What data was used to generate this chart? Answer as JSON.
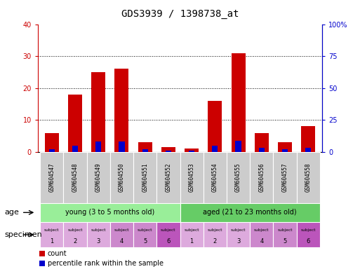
{
  "title": "GDS3939 / 1398738_at",
  "categories": [
    "GSM604547",
    "GSM604548",
    "GSM604549",
    "GSM604550",
    "GSM604551",
    "GSM604552",
    "GSM604553",
    "GSM604554",
    "GSM604555",
    "GSM604556",
    "GSM604557",
    "GSM604558"
  ],
  "count_values": [
    6,
    18,
    25,
    26,
    3,
    1.5,
    1,
    16,
    31,
    6,
    3,
    8
  ],
  "percentile_values": [
    2,
    5,
    8,
    8,
    2,
    1,
    1,
    5,
    8.5,
    3,
    2,
    3
  ],
  "bar_color": "#cc0000",
  "percentile_color": "#0000cc",
  "bar_width": 0.6,
  "percentile_bar_width": 0.25,
  "ylim_left": [
    0,
    40
  ],
  "ylim_right": [
    0,
    100
  ],
  "yticks_left": [
    0,
    10,
    20,
    30,
    40
  ],
  "yticks_right": [
    0,
    25,
    50,
    75,
    100
  ],
  "ytick_labels_left": [
    "0",
    "10",
    "20",
    "30",
    "40"
  ],
  "ytick_labels_right": [
    "0",
    "25",
    "50",
    "75",
    "100%"
  ],
  "age_groups": [
    {
      "label": "young (3 to 5 months old)",
      "start": 0,
      "end": 6,
      "color": "#99ee99"
    },
    {
      "label": "aged (21 to 23 months old)",
      "start": 6,
      "end": 12,
      "color": "#66cc66"
    }
  ],
  "spec_colors_young": [
    "#ddaadd",
    "#ddaadd",
    "#ddaadd",
    "#cc88cc",
    "#cc88cc",
    "#bb55bb"
  ],
  "spec_colors_aged": [
    "#ddaadd",
    "#ddaadd",
    "#ddaadd",
    "#cc88cc",
    "#cc88cc",
    "#bb55bb"
  ],
  "age_label": "age",
  "specimen_label": "specimen",
  "legend_items": [
    {
      "color": "#cc0000",
      "label": "count"
    },
    {
      "color": "#0000cc",
      "label": "percentile rank within the sample"
    }
  ],
  "fig_width": 5.13,
  "fig_height": 3.84
}
